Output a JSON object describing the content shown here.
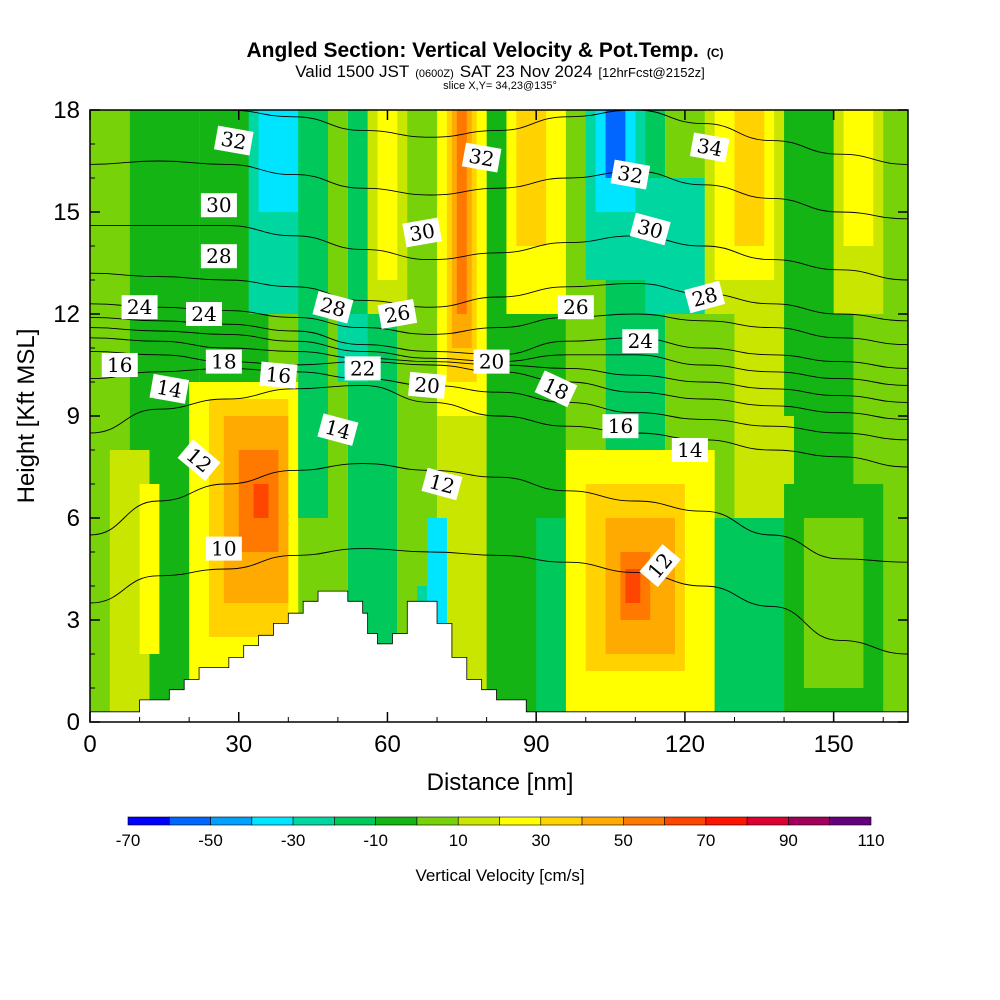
{
  "title": {
    "main": "Angled Section: Vertical Velocity & Pot.Temp.",
    "main_tag": "(C)",
    "line2_a": "Valid 1500 JST",
    "line2_b": "(0600Z)",
    "line2_c": "SAT 23 Nov 2024",
    "line2_d": "[12hrFcst@2152z]",
    "line3": "slice X,Y= 34,23@135°"
  },
  "chart_data": {
    "type": "heatmap",
    "xlabel": "Distance [nm]",
    "ylabel": "Height [Kft MSL]",
    "xlim": [
      0,
      165
    ],
    "ylim": [
      0,
      18
    ],
    "x_ticks": [
      0,
      30,
      60,
      90,
      120,
      150
    ],
    "y_ticks": [
      0,
      3,
      6,
      9,
      12,
      15,
      18
    ],
    "colorbar": {
      "label": "Vertical Velocity [cm/s]",
      "tick_labels": [
        "-70",
        "-50",
        "-30",
        "-10",
        "10",
        "30",
        "50",
        "70",
        "90",
        "110"
      ],
      "levels": [
        -70,
        -60,
        -50,
        -40,
        -30,
        -20,
        -10,
        0,
        10,
        20,
        30,
        40,
        50,
        60,
        70,
        80,
        90,
        100,
        110
      ],
      "colors": [
        "#0000ff",
        "#0066ff",
        "#00a0ff",
        "#00e5ff",
        "#00d7a0",
        "#00c85a",
        "#14b414",
        "#78d20a",
        "#c8e600",
        "#ffff00",
        "#ffd200",
        "#ffaa00",
        "#ff7800",
        "#ff4600",
        "#ff1400",
        "#dc0032",
        "#a0005a",
        "#64007d"
      ]
    },
    "terrain_height_kft": [
      [
        0,
        0.3
      ],
      [
        10,
        0.3
      ],
      [
        10,
        0.65
      ],
      [
        16,
        0.65
      ],
      [
        16,
        0.95
      ],
      [
        19,
        0.95
      ],
      [
        19,
        1.25
      ],
      [
        22,
        1.25
      ],
      [
        22,
        1.6
      ],
      [
        28,
        1.6
      ],
      [
        28,
        1.9
      ],
      [
        31,
        1.9
      ],
      [
        31,
        2.25
      ],
      [
        34,
        2.25
      ],
      [
        34,
        2.55
      ],
      [
        37,
        2.55
      ],
      [
        37,
        2.9
      ],
      [
        40,
        2.9
      ],
      [
        40,
        3.2
      ],
      [
        43,
        3.2
      ],
      [
        43,
        3.55
      ],
      [
        46,
        3.55
      ],
      [
        46,
        3.85
      ],
      [
        52,
        3.85
      ],
      [
        52,
        3.55
      ],
      [
        55,
        3.55
      ],
      [
        55,
        3.2
      ],
      [
        56,
        3.2
      ],
      [
        56,
        2.6
      ],
      [
        58,
        2.6
      ],
      [
        58,
        2.3
      ],
      [
        61,
        2.3
      ],
      [
        61,
        2.6
      ],
      [
        64,
        2.6
      ],
      [
        64,
        3.55
      ],
      [
        70,
        3.55
      ],
      [
        70,
        2.9
      ],
      [
        73,
        2.9
      ],
      [
        73,
        1.9
      ],
      [
        76,
        1.9
      ],
      [
        76,
        1.25
      ],
      [
        79,
        1.25
      ],
      [
        79,
        0.95
      ],
      [
        82,
        0.95
      ],
      [
        82,
        0.65
      ],
      [
        88,
        0.65
      ],
      [
        88,
        0.3
      ],
      [
        165,
        0.3
      ]
    ],
    "vertical_velocity_cells": [
      {
        "x": [
          0,
          8
        ],
        "y": [
          0,
          18
        ],
        "level": 7
      },
      {
        "x": [
          8,
          22
        ],
        "y": [
          0,
          18
        ],
        "level": 6
      },
      {
        "x": [
          22,
          36
        ],
        "y": [
          0,
          18
        ],
        "level": 6
      },
      {
        "x": [
          36,
          52
        ],
        "y": [
          0,
          18
        ],
        "level": 7
      },
      {
        "x": [
          52,
          62
        ],
        "y": [
          0,
          18
        ],
        "level": 5
      },
      {
        "x": [
          62,
          70
        ],
        "y": [
          0,
          18
        ],
        "level": 7
      },
      {
        "x": [
          70,
          80
        ],
        "y": [
          0,
          18
        ],
        "level": 8
      },
      {
        "x": [
          80,
          96
        ],
        "y": [
          0,
          18
        ],
        "level": 6
      },
      {
        "x": [
          96,
          104
        ],
        "y": [
          0,
          18
        ],
        "level": 7
      },
      {
        "x": [
          104,
          116
        ],
        "y": [
          0,
          18
        ],
        "level": 5
      },
      {
        "x": [
          116,
          130
        ],
        "y": [
          0,
          18
        ],
        "level": 7
      },
      {
        "x": [
          130,
          142
        ],
        "y": [
          0,
          18
        ],
        "level": 8
      },
      {
        "x": [
          142,
          154
        ],
        "y": [
          0,
          18
        ],
        "level": 6
      },
      {
        "x": [
          154,
          165
        ],
        "y": [
          0,
          18
        ],
        "level": 7
      },
      {
        "x": [
          4,
          12
        ],
        "y": [
          0.3,
          8
        ],
        "level": 8
      },
      {
        "x": [
          10,
          14
        ],
        "y": [
          2,
          7
        ],
        "level": 9
      },
      {
        "x": [
          20,
          42
        ],
        "y": [
          1,
          10
        ],
        "level": 9
      },
      {
        "x": [
          24,
          40
        ],
        "y": [
          2.5,
          9.5
        ],
        "level": 10
      },
      {
        "x": [
          27,
          40
        ],
        "y": [
          3.5,
          9
        ],
        "level": 11
      },
      {
        "x": [
          30,
          38
        ],
        "y": [
          5,
          8
        ],
        "level": 12
      },
      {
        "x": [
          33,
          36
        ],
        "y": [
          6,
          7
        ],
        "level": 13
      },
      {
        "x": [
          32,
          44
        ],
        "y": [
          12,
          18
        ],
        "level": 4
      },
      {
        "x": [
          34,
          42
        ],
        "y": [
          15,
          18
        ],
        "level": 3
      },
      {
        "x": [
          42,
          48
        ],
        "y": [
          6,
          18
        ],
        "level": 5
      },
      {
        "x": [
          50,
          56
        ],
        "y": [
          10,
          12
        ],
        "level": 4
      },
      {
        "x": [
          56,
          64
        ],
        "y": [
          12,
          18
        ],
        "level": 8
      },
      {
        "x": [
          58,
          62
        ],
        "y": [
          13,
          18
        ],
        "level": 9
      },
      {
        "x": [
          66,
          70
        ],
        "y": [
          0,
          4
        ],
        "level": 4
      },
      {
        "x": [
          68,
          72
        ],
        "y": [
          2,
          6
        ],
        "level": 3
      },
      {
        "x": [
          70,
          80
        ],
        "y": [
          9,
          18
        ],
        "level": 9
      },
      {
        "x": [
          72,
          78
        ],
        "y": [
          10,
          18
        ],
        "level": 10
      },
      {
        "x": [
          73,
          77
        ],
        "y": [
          11,
          18
        ],
        "level": 11
      },
      {
        "x": [
          74,
          76
        ],
        "y": [
          12,
          18
        ],
        "level": 12
      },
      {
        "x": [
          84,
          96
        ],
        "y": [
          12,
          18
        ],
        "level": 9
      },
      {
        "x": [
          86,
          92
        ],
        "y": [
          14,
          18
        ],
        "level": 10
      },
      {
        "x": [
          90,
          98
        ],
        "y": [
          0.3,
          6
        ],
        "level": 5
      },
      {
        "x": [
          96,
          126
        ],
        "y": [
          0.3,
          8
        ],
        "level": 9
      },
      {
        "x": [
          100,
          120
        ],
        "y": [
          1.5,
          7
        ],
        "level": 10
      },
      {
        "x": [
          104,
          118
        ],
        "y": [
          2,
          6
        ],
        "level": 11
      },
      {
        "x": [
          107,
          113
        ],
        "y": [
          3,
          5
        ],
        "level": 12
      },
      {
        "x": [
          108,
          111
        ],
        "y": [
          3.5,
          4.5
        ],
        "level": 13
      },
      {
        "x": [
          100,
          112
        ],
        "y": [
          13,
          18
        ],
        "level": 4
      },
      {
        "x": [
          102,
          110
        ],
        "y": [
          15,
          18
        ],
        "level": 3
      },
      {
        "x": [
          104,
          108
        ],
        "y": [
          16,
          18
        ],
        "level": 1
      },
      {
        "x": [
          112,
          126
        ],
        "y": [
          12,
          16
        ],
        "level": 4
      },
      {
        "x": [
          124,
          140
        ],
        "y": [
          12,
          18
        ],
        "level": 8
      },
      {
        "x": [
          126,
          138
        ],
        "y": [
          13,
          18
        ],
        "level": 9
      },
      {
        "x": [
          130,
          136
        ],
        "y": [
          14,
          18
        ],
        "level": 10
      },
      {
        "x": [
          140,
          150
        ],
        "y": [
          9,
          18
        ],
        "level": 6
      },
      {
        "x": [
          150,
          160
        ],
        "y": [
          12,
          18
        ],
        "level": 8
      },
      {
        "x": [
          152,
          158
        ],
        "y": [
          14,
          18
        ],
        "level": 9
      },
      {
        "x": [
          140,
          160
        ],
        "y": [
          0.3,
          7
        ],
        "level": 6
      },
      {
        "x": [
          144,
          156
        ],
        "y": [
          1,
          6
        ],
        "level": 7
      },
      {
        "x": [
          126,
          140
        ],
        "y": [
          0.3,
          6
        ],
        "level": 5
      }
    ],
    "pot_temp_contours": [
      {
        "theta": 10,
        "y": [
          3.5,
          4.3,
          4.5,
          4.9,
          5.1,
          5.0,
          4.9,
          4.7,
          4.4,
          4.0,
          3.4,
          2.4,
          2.0
        ]
      },
      {
        "theta": 12,
        "y": [
          5.5,
          6.5,
          7.0,
          7.4,
          7.6,
          7.4,
          7.2,
          6.8,
          6.5,
          6.2,
          5.5,
          4.8,
          4.7
        ]
      },
      {
        "theta": 14,
        "y": [
          8.5,
          9.2,
          9.5,
          9.8,
          9.9,
          9.4,
          9.0,
          8.7,
          8.5,
          8.3,
          8.0,
          7.8,
          7.5
        ]
      },
      {
        "theta": 16,
        "y": [
          10.1,
          10.3,
          10.4,
          10.3,
          10.1,
          9.9,
          9.7,
          9.4,
          9.1,
          8.9,
          8.7,
          8.5,
          8.3
        ]
      },
      {
        "theta": 18,
        "y": [
          10.9,
          10.8,
          10.6,
          10.5,
          10.6,
          10.5,
          10.3,
          10.0,
          9.7,
          9.5,
          9.3,
          9.1,
          8.9
        ]
      },
      {
        "theta": 20,
        "y": [
          11.3,
          11.2,
          11.0,
          10.9,
          10.7,
          10.6,
          10.5,
          10.4,
          10.2,
          10.0,
          9.8,
          9.6,
          9.4
        ]
      },
      {
        "theta": 22,
        "y": [
          11.6,
          11.5,
          11.4,
          11.2,
          10.9,
          10.7,
          10.6,
          10.8,
          10.8,
          10.5,
          10.3,
          10.1,
          9.9
        ]
      },
      {
        "theta": 24,
        "y": [
          11.9,
          11.8,
          11.7,
          11.5,
          11.1,
          10.9,
          10.8,
          11.2,
          11.3,
          11.0,
          10.8,
          10.6,
          10.4
        ]
      },
      {
        "theta": 26,
        "y": [
          12.3,
          12.2,
          12.1,
          11.9,
          11.6,
          11.4,
          11.6,
          11.9,
          12.0,
          11.8,
          11.6,
          11.3,
          11.1
        ]
      },
      {
        "theta": 28,
        "y": [
          13.2,
          13.1,
          13.0,
          12.8,
          12.4,
          12.2,
          12.5,
          12.8,
          12.9,
          12.6,
          12.3,
          12.0,
          11.8
        ]
      },
      {
        "theta": 30,
        "y": [
          14.6,
          14.6,
          14.6,
          14.3,
          13.9,
          13.6,
          13.8,
          14.1,
          14.3,
          14.0,
          13.6,
          13.3,
          13.0
        ]
      },
      {
        "theta": 32,
        "y": [
          16.4,
          16.5,
          16.4,
          16.1,
          15.7,
          15.5,
          15.7,
          16.0,
          16.2,
          15.8,
          15.4,
          15.0,
          14.8
        ]
      },
      {
        "theta": 34,
        "y": [
          18.0,
          18.0,
          18.0,
          17.8,
          17.4,
          17.2,
          17.4,
          17.8,
          18.0,
          17.6,
          17.1,
          16.7,
          16.4
        ]
      }
    ],
    "contour_labels": [
      {
        "text": "10",
        "x": 27,
        "y": 5.1,
        "angle": 0
      },
      {
        "text": "12",
        "x": 22,
        "y": 7.7,
        "angle": 40
      },
      {
        "text": "12",
        "x": 71,
        "y": 7.0,
        "angle": 15
      },
      {
        "text": "12",
        "x": 115,
        "y": 4.6,
        "angle": -50
      },
      {
        "text": "14",
        "x": 16,
        "y": 9.8,
        "angle": 10
      },
      {
        "text": "14",
        "x": 50,
        "y": 8.6,
        "angle": 15
      },
      {
        "text": "14",
        "x": 121,
        "y": 8.0,
        "angle": 0
      },
      {
        "text": "16",
        "x": 6,
        "y": 10.5,
        "angle": 0
      },
      {
        "text": "16",
        "x": 38,
        "y": 10.2,
        "angle": 5
      },
      {
        "text": "16",
        "x": 107,
        "y": 8.7,
        "angle": 0
      },
      {
        "text": "18",
        "x": 27,
        "y": 10.6,
        "angle": 0
      },
      {
        "text": "18",
        "x": 94,
        "y": 9.8,
        "angle": 25
      },
      {
        "text": "20",
        "x": 68,
        "y": 9.9,
        "angle": 5
      },
      {
        "text": "20",
        "x": 81,
        "y": 10.6,
        "angle": 0
      },
      {
        "text": "22",
        "x": 55,
        "y": 10.4,
        "angle": 0
      },
      {
        "text": "24",
        "x": 10,
        "y": 12.2,
        "angle": 0
      },
      {
        "text": "24",
        "x": 23,
        "y": 12.0,
        "angle": 0
      },
      {
        "text": "24",
        "x": 111,
        "y": 11.2,
        "angle": 0
      },
      {
        "text": "26",
        "x": 62,
        "y": 12.0,
        "angle": -10
      },
      {
        "text": "26",
        "x": 98,
        "y": 12.2,
        "angle": 0
      },
      {
        "text": "28",
        "x": 26,
        "y": 13.7,
        "angle": 0
      },
      {
        "text": "28",
        "x": 49,
        "y": 12.2,
        "angle": 15
      },
      {
        "text": "28",
        "x": 124,
        "y": 12.5,
        "angle": -15
      },
      {
        "text": "30",
        "x": 26,
        "y": 15.2,
        "angle": 0
      },
      {
        "text": "30",
        "x": 67,
        "y": 14.4,
        "angle": -10
      },
      {
        "text": "30",
        "x": 113,
        "y": 14.5,
        "angle": 15
      },
      {
        "text": "32",
        "x": 29,
        "y": 17.1,
        "angle": 10
      },
      {
        "text": "32",
        "x": 79,
        "y": 16.6,
        "angle": 10
      },
      {
        "text": "32",
        "x": 109,
        "y": 16.1,
        "angle": 10
      },
      {
        "text": "34",
        "x": 125,
        "y": 16.9,
        "angle": 10
      }
    ]
  }
}
